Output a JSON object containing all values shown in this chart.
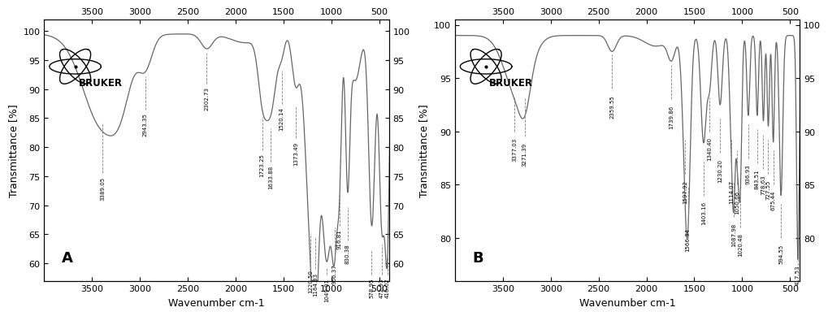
{
  "panel_A": {
    "label": "A",
    "xlabel": "Wavenumber cm-1",
    "ylabel": "Transmittance [%]",
    "xlim": [
      4000,
      400
    ],
    "ylim": [
      57,
      102
    ],
    "yticks": [
      60,
      65,
      70,
      75,
      80,
      85,
      90,
      95,
      100
    ],
    "xticks": [
      3500,
      3000,
      2500,
      2000,
      1500,
      1000,
      500
    ],
    "peaks": [
      {
        "x": 3389.05,
        "y_line": 84.5,
        "y_label": 75.0,
        "label": "3389.05"
      },
      {
        "x": 2943.35,
        "y_line": 92.5,
        "y_label": 86.0,
        "label": "2943.35"
      },
      {
        "x": 2302.73,
        "y_line": 96.5,
        "y_label": 90.5,
        "label": "2302.73"
      },
      {
        "x": 1723.25,
        "y_line": 85.5,
        "y_label": 79.0,
        "label": "1723.25"
      },
      {
        "x": 1633.88,
        "y_line": 83.5,
        "y_label": 77.0,
        "label": "1633.88"
      },
      {
        "x": 1520.14,
        "y_line": 93.5,
        "y_label": 87.0,
        "label": "1520.14"
      },
      {
        "x": 1373.49,
        "y_line": 87.5,
        "y_label": 81.0,
        "label": "1373.49"
      },
      {
        "x": 1220.5,
        "y_line": 65.5,
        "y_label": 59.0,
        "label": "1220.50"
      },
      {
        "x": 1164.33,
        "y_line": 65.0,
        "y_label": 58.5,
        "label": "1164.33"
      },
      {
        "x": 1049.01,
        "y_line": 59.5,
        "y_label": 57.5,
        "label": "1049.01"
      },
      {
        "x": 966.37,
        "y_line": 66.5,
        "y_label": 60.0,
        "label": "966.37"
      },
      {
        "x": 916.81,
        "y_line": 72.5,
        "y_label": 66.0,
        "label": "916.81"
      },
      {
        "x": 830.38,
        "y_line": 70.0,
        "y_label": 63.5,
        "label": "830.38"
      },
      {
        "x": 578.95,
        "y_line": 62.5,
        "y_label": 57.5,
        "label": "578.95"
      },
      {
        "x": 472.93,
        "y_line": 63.5,
        "y_label": 57.5,
        "label": "472.93"
      },
      {
        "x": 416.02,
        "y_line": 61.5,
        "y_label": 57.5,
        "label": "416.02"
      }
    ]
  },
  "panel_B": {
    "label": "B",
    "xlabel": "Wavenumber cm-1",
    "ylabel": "Transmittance [%]",
    "xlim": [
      4000,
      400
    ],
    "ylim": [
      76,
      100.5
    ],
    "yticks": [
      80,
      85,
      90,
      95,
      100
    ],
    "xticks": [
      3500,
      3000,
      2500,
      2000,
      1500,
      1000,
      500
    ],
    "peaks": [
      {
        "x": 3377.03,
        "y_line": 93.5,
        "y_label": 89.5,
        "label": "3377.03"
      },
      {
        "x": 3271.39,
        "y_line": 93.5,
        "y_label": 89.0,
        "label": "3271.39"
      },
      {
        "x": 2359.55,
        "y_line": 97.5,
        "y_label": 93.5,
        "label": "2359.55"
      },
      {
        "x": 1739.86,
        "y_line": 96.5,
        "y_label": 92.5,
        "label": "1739.86"
      },
      {
        "x": 1597.92,
        "y_line": 89.5,
        "y_label": 85.5,
        "label": "1597.92"
      },
      {
        "x": 1566.34,
        "y_line": 85.0,
        "y_label": 81.0,
        "label": "1566.34"
      },
      {
        "x": 1403.16,
        "y_line": 87.5,
        "y_label": 83.5,
        "label": "1403.16"
      },
      {
        "x": 1340.4,
        "y_line": 93.5,
        "y_label": 89.5,
        "label": "1340.40"
      },
      {
        "x": 1230.2,
        "y_line": 91.5,
        "y_label": 87.5,
        "label": "1230.20"
      },
      {
        "x": 1114.07,
        "y_line": 89.5,
        "y_label": 85.5,
        "label": "1114.07"
      },
      {
        "x": 1087.98,
        "y_line": 85.5,
        "y_label": 81.5,
        "label": "1087.98"
      },
      {
        "x": 1050.66,
        "y_line": 88.5,
        "y_label": 84.5,
        "label": "1050.66"
      },
      {
        "x": 1020.48,
        "y_line": 84.5,
        "y_label": 80.5,
        "label": "1020.48"
      },
      {
        "x": 936.93,
        "y_line": 91.0,
        "y_label": 87.0,
        "label": "936.93"
      },
      {
        "x": 843.51,
        "y_line": 90.5,
        "y_label": 86.5,
        "label": "843.51"
      },
      {
        "x": 778.63,
        "y_line": 90.0,
        "y_label": 86.0,
        "label": "778.63"
      },
      {
        "x": 727.55,
        "y_line": 89.5,
        "y_label": 85.5,
        "label": "727.55"
      },
      {
        "x": 675.44,
        "y_line": 88.5,
        "y_label": 84.5,
        "label": "675.44"
      },
      {
        "x": 594.55,
        "y_line": 83.5,
        "y_label": 79.5,
        "label": "594.55"
      },
      {
        "x": 417.53,
        "y_line": 77.5,
        "y_label": 77.5,
        "label": "417.53"
      }
    ]
  },
  "line_color": "#666666",
  "background_color": "#ffffff",
  "annotation_fontsize": 5.0,
  "label_fontsize": 9,
  "tick_fontsize": 8
}
